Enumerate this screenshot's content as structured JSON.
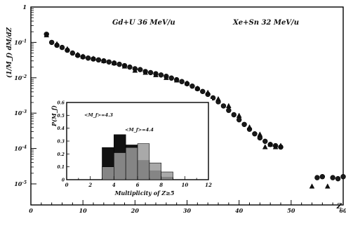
{
  "chart_data": {
    "type": "scatter",
    "ylabel": "(1/M_f) dM/dZ",
    "xlabel": "Z",
    "yscale": "log",
    "xlim": [
      0,
      60
    ],
    "ylim": [
      1e-05,
      1
    ],
    "xticks": [
      "0",
      "10",
      "20",
      "30",
      "40",
      "50",
      "60"
    ],
    "yticks": [
      "1",
      "10-1",
      "10-2",
      "10-3",
      "10-4",
      "10-5"
    ],
    "legend_placement": "top",
    "grid": false,
    "series": [
      {
        "name": "Gd+U 36 MeV/u",
        "marker": "circle",
        "points": [
          [
            3,
            0.17
          ],
          [
            4,
            0.1
          ],
          [
            5,
            0.083
          ],
          [
            6,
            0.072
          ],
          [
            7,
            0.06
          ],
          [
            8,
            0.05
          ],
          [
            9,
            0.043
          ],
          [
            10,
            0.039
          ],
          [
            11,
            0.036
          ],
          [
            12,
            0.034
          ],
          [
            13,
            0.032
          ],
          [
            14,
            0.03
          ],
          [
            15,
            0.028
          ],
          [
            16,
            0.026
          ],
          [
            17,
            0.024
          ],
          [
            18,
            0.022
          ],
          [
            19,
            0.02
          ],
          [
            20,
            0.018
          ],
          [
            21,
            0.017
          ],
          [
            22,
            0.015
          ],
          [
            23,
            0.014
          ],
          [
            24,
            0.013
          ],
          [
            25,
            0.012
          ],
          [
            26,
            0.011
          ],
          [
            27,
            0.0098
          ],
          [
            28,
            0.0088
          ],
          [
            29,
            0.0078
          ],
          [
            30,
            0.0068
          ],
          [
            31,
            0.0058
          ],
          [
            32,
            0.0049
          ],
          [
            33,
            0.0041
          ],
          [
            34,
            0.0034
          ],
          [
            35,
            0.0027
          ],
          [
            36,
            0.0021
          ],
          [
            37,
            0.0016
          ],
          [
            38,
            0.0012
          ],
          [
            39,
            0.0009
          ],
          [
            40,
            0.00065
          ],
          [
            41,
            0.00048
          ],
          [
            42,
            0.00035
          ],
          [
            43,
            0.00026
          ],
          [
            44,
            0.0002
          ],
          [
            45,
            0.00016
          ],
          [
            46,
            0.00013
          ],
          [
            47,
            0.00012
          ],
          [
            48,
            0.00011
          ],
          [
            55,
            1.5e-05
          ],
          [
            56,
            1.6e-05
          ],
          [
            58,
            1.5e-05
          ],
          [
            59,
            1.4e-05
          ],
          [
            60,
            1.6e-05
          ]
        ]
      },
      {
        "name": "Xe+Sn 32 MeV/u",
        "marker": "triangle",
        "points": [
          [
            3,
            0.16
          ],
          [
            5,
            0.09
          ],
          [
            7,
            0.065
          ],
          [
            9,
            0.045
          ],
          [
            10,
            0.04
          ],
          [
            12,
            0.035
          ],
          [
            14,
            0.03
          ],
          [
            16,
            0.026
          ],
          [
            18,
            0.021
          ],
          [
            20,
            0.016
          ],
          [
            22,
            0.014
          ],
          [
            24,
            0.012
          ],
          [
            26,
            0.01
          ],
          [
            28,
            0.0085
          ],
          [
            30,
            0.007
          ],
          [
            32,
            0.005
          ],
          [
            34,
            0.0038
          ],
          [
            36,
            0.0025
          ],
          [
            38,
            0.0016
          ],
          [
            40,
            0.00085
          ],
          [
            42,
            0.0004
          ],
          [
            44,
            0.00025
          ],
          [
            45,
            0.00011
          ],
          [
            46,
            0.00013
          ],
          [
            47,
            0.00011
          ],
          [
            48,
            0.00012
          ],
          [
            54,
            8.5e-06
          ],
          [
            57,
            8.5e-06
          ]
        ]
      }
    ],
    "inset": {
      "type": "histogram",
      "xlabel": "Multiplicity of Z≥5",
      "ylabel": "P(M_f)",
      "xlim": [
        0,
        12
      ],
      "ylim": [
        0,
        0.6
      ],
      "xticks": [
        "0",
        "2",
        "4",
        "6",
        "8",
        "10",
        "12"
      ],
      "yticks": [
        "0",
        "0.1",
        "0.2",
        "0.3",
        "0.4",
        "0.5",
        "0.6"
      ],
      "series": [
        {
          "name": "<M_f>=4.3",
          "fill": "#111111",
          "bins": [
            [
              3,
              4,
              0.25
            ],
            [
              4,
              5,
              0.35
            ],
            [
              5,
              6,
              0.27
            ],
            [
              6,
              7,
              0.15
            ],
            [
              7,
              8,
              0.07
            ],
            [
              8,
              9,
              0.02
            ]
          ]
        },
        {
          "name": "<M_f>=4.4",
          "fill": "#9a9a9a",
          "bins": [
            [
              3,
              4,
              0.1
            ],
            [
              4,
              5,
              0.21
            ],
            [
              5,
              6,
              0.25
            ],
            [
              6,
              7,
              0.28
            ],
            [
              7,
              8,
              0.13
            ],
            [
              8,
              9,
              0.06
            ]
          ]
        }
      ]
    }
  },
  "labels": {
    "series1": "Gd+U  36 MeV/u",
    "series2": "Xe+Sn 32 MeV/u",
    "inset_label1": "<M_f>=4.3",
    "inset_label2": "<M_f>=4.4"
  }
}
